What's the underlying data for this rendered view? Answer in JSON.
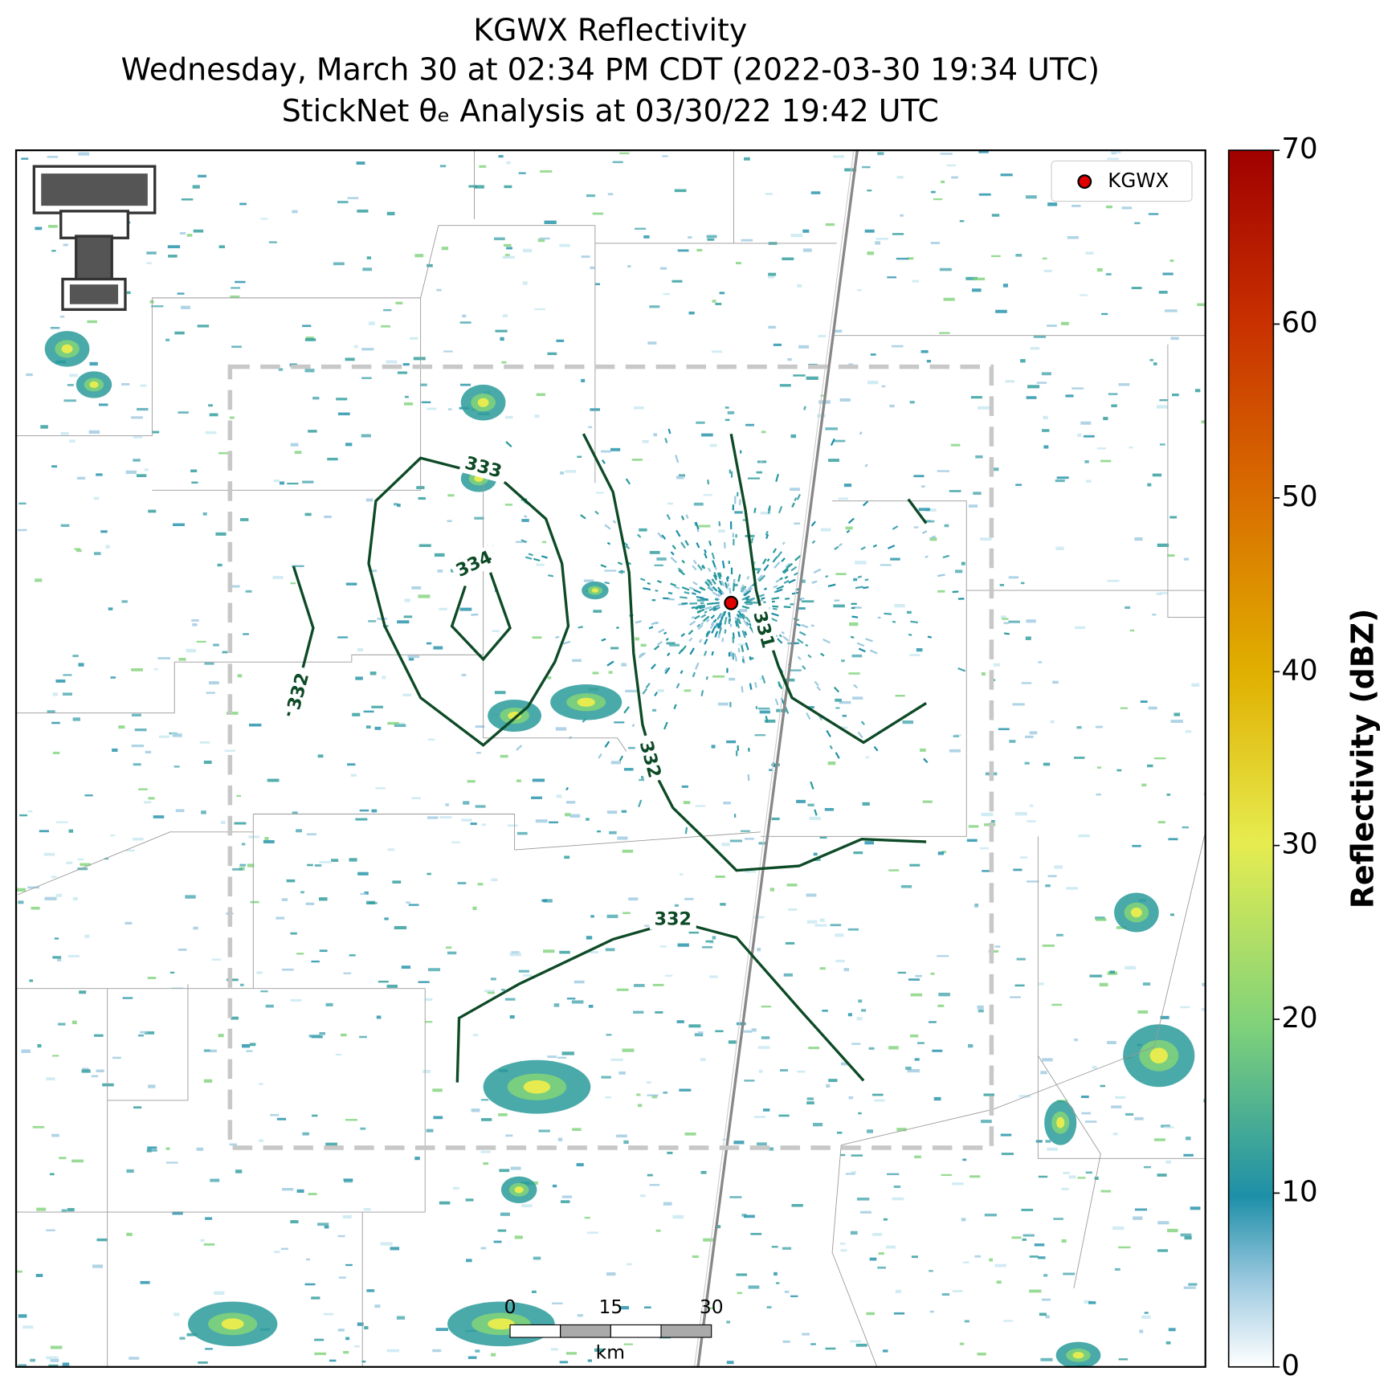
{
  "title": [
    "KGWX Reflectivity",
    "Wednesday, March 30 at 02:34 PM CDT (2022-03-30 19:34 UTC)",
    "StickNet θₑ Analysis at 03/30/22 19:42 UTC"
  ],
  "legend": {
    "label": "KGWX"
  },
  "colorbar": {
    "label": "Reflectivity (dBZ)",
    "lim": [
      0,
      70
    ],
    "ticks": [
      0,
      10,
      20,
      30,
      40,
      50,
      60,
      70
    ]
  },
  "contour_labels": [
    333,
    334,
    332,
    332,
    331,
    332
  ],
  "scale_bar": {
    "ticks": [
      0,
      15,
      30
    ],
    "unit": "km"
  }
}
